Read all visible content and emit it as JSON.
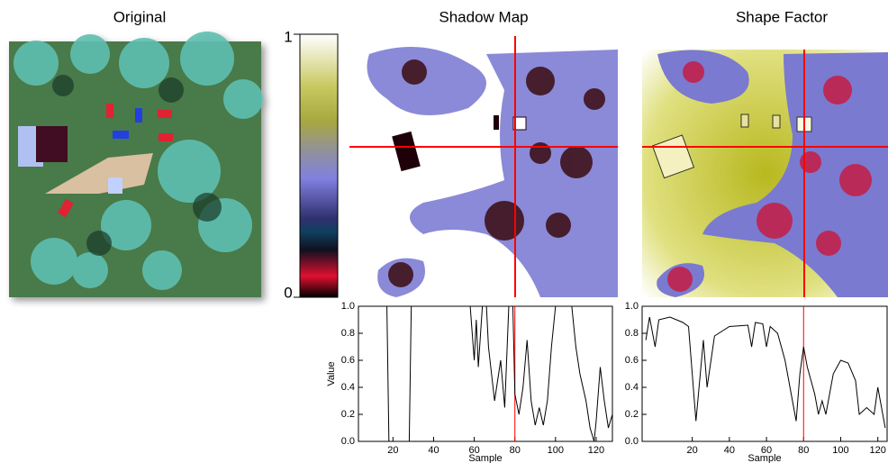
{
  "panel_titles": [
    "Original",
    "Shadow Map",
    "Shape Factor"
  ],
  "colorbar": {
    "max": 1,
    "min": 0
  },
  "chart_data": [
    {
      "type": "line",
      "xlabel": "Sample",
      "ylabel": "Value",
      "color": "#000000",
      "marker_x": 80,
      "marker_color": "#ff0000",
      "xlim": [
        3,
        128
      ],
      "ylim": [
        0,
        1
      ],
      "xticks": [
        20,
        40,
        60,
        80,
        100,
        120
      ],
      "yticks": [
        {
          "value": 0,
          "label": "0.0"
        },
        {
          "value": 0.2,
          "label": "0.2"
        },
        {
          "value": 0.4,
          "label": "0.4"
        },
        {
          "value": 0.6,
          "label": "0.6"
        },
        {
          "value": 0.8,
          "label": "0.8"
        },
        {
          "value": 1,
          "label": "1.0"
        }
      ],
      "x": [
        3,
        17,
        18,
        28,
        29,
        58,
        60,
        61,
        62,
        64,
        66,
        67,
        70,
        72,
        73,
        75,
        77,
        79,
        80,
        82,
        84,
        86,
        88,
        90,
        92,
        94,
        96,
        98,
        100,
        108,
        110,
        112,
        115,
        117,
        119,
        120,
        122,
        124,
        126,
        128
      ],
      "values": [
        1,
        1,
        0,
        0,
        1,
        1,
        0.6,
        0.9,
        0.55,
        1,
        1,
        0.7,
        0.3,
        0.5,
        0.6,
        0.25,
        1,
        1,
        0.35,
        0.2,
        0.4,
        0.75,
        0.3,
        0.12,
        0.25,
        0.12,
        0.3,
        0.7,
        1,
        1,
        0.7,
        0.5,
        0.3,
        0.1,
        0,
        0.15,
        0.55,
        0.3,
        0.1,
        0.2
      ]
    },
    {
      "type": "line",
      "xlabel": "Sample",
      "color": "#000000",
      "marker_x": 80,
      "marker_color": "#ff0000",
      "xlim": [
        -7,
        125
      ],
      "ylim": [
        0,
        1
      ],
      "xticks": [
        20,
        40,
        60,
        80,
        100,
        120
      ],
      "yticks": [
        {
          "value": 0,
          "label": "0.0"
        },
        {
          "value": 0.2,
          "label": "0.2"
        },
        {
          "value": 0.4,
          "label": "0.4"
        },
        {
          "value": 0.6,
          "label": "0.6"
        },
        {
          "value": 0.8,
          "label": "0.8"
        },
        {
          "value": 1,
          "label": "1.0"
        }
      ],
      "x": [
        -5,
        -3,
        0,
        2,
        8,
        15,
        18,
        20,
        22,
        24,
        26,
        28,
        32,
        40,
        50,
        52,
        54,
        58,
        60,
        62,
        66,
        70,
        74,
        76,
        78,
        80,
        82,
        86,
        88,
        90,
        92,
        96,
        100,
        104,
        108,
        110,
        114,
        118,
        120,
        122,
        124
      ],
      "values": [
        0.75,
        0.92,
        0.7,
        0.9,
        0.92,
        0.88,
        0.85,
        0.5,
        0.15,
        0.45,
        0.75,
        0.4,
        0.78,
        0.85,
        0.86,
        0.7,
        0.88,
        0.87,
        0.7,
        0.85,
        0.8,
        0.6,
        0.3,
        0.15,
        0.5,
        0.7,
        0.55,
        0.35,
        0.2,
        0.3,
        0.2,
        0.5,
        0.6,
        0.58,
        0.45,
        0.2,
        0.25,
        0.2,
        0.4,
        0.25,
        0.1
      ]
    }
  ]
}
